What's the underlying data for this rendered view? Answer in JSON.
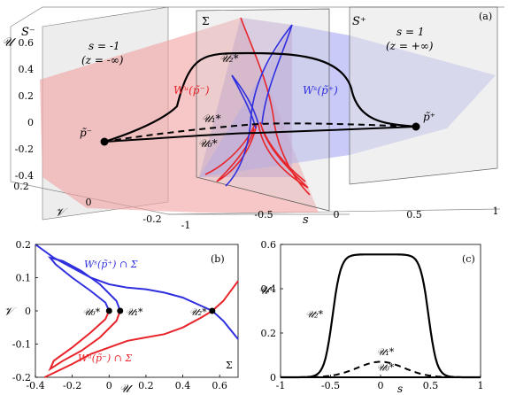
{
  "colors": {
    "red": "#e8242a",
    "blue": "#2f2fe0",
    "red_plane": "#f2a0a0",
    "blue_plane": "#a6a6f5",
    "grey_plane": "#d9d9d9",
    "black": "#000000"
  },
  "panel_a": {
    "label": "(a)",
    "ylabel": "𝒰",
    "vlabel": "𝒱",
    "slabel": "s",
    "u_ticks": [
      "0.6",
      "0.4",
      "0.2",
      "0",
      "-0.2",
      "-0.4"
    ],
    "v_ticks": [
      "0.2",
      "0",
      "-0.2"
    ],
    "s_ticks": [
      "-1",
      "-0.5",
      "0",
      "0.5",
      "1"
    ],
    "section_minus": "S⁻",
    "section_sigma": "Σ",
    "section_plus": "S⁺",
    "s_minus": "s = -1",
    "z_minus": "(z = -∞)",
    "s_plus": "s = 1",
    "z_plus": "(z = +∞)",
    "wu_label": "Wᵘ(p̃⁻)",
    "ws_label": "Wˢ(p̃⁺)",
    "p_minus": "p̃⁻",
    "p_plus": "p̃⁺",
    "u2": "𝒰₂*",
    "u1": "𝒰₁*",
    "u0": "𝒰₀*"
  },
  "chart_data": [
    {
      "type": "line",
      "panel": "(b)",
      "xlabel": "𝒰",
      "ylabel": "𝒱",
      "xlim": [
        -0.4,
        0.7
      ],
      "ylim": [
        -0.2,
        0.2
      ],
      "x_ticks": [
        "-0.4",
        "-0.2",
        "0",
        "0.2",
        "0.4",
        "0.6"
      ],
      "y_ticks": [
        "0.2",
        "0.1",
        "0",
        "-0.1",
        "-0.2"
      ],
      "corner_label": "Σ",
      "series_labels": {
        "blue": "Wˢ(p̃⁺) ∩ Σ",
        "red": "Wᵘ(p̃⁻) ∩ Σ"
      },
      "points": [
        {
          "label": "𝒰₀*",
          "x": 0.0,
          "y": 0.0
        },
        {
          "label": "𝒰₁*",
          "x": 0.06,
          "y": 0.0
        },
        {
          "label": "𝒰₂*",
          "x": 0.56,
          "y": 0.0
        }
      ],
      "blue_curve_1": [
        [
          -0.4,
          0.2
        ],
        [
          -0.3,
          0.16
        ],
        [
          -0.2,
          0.13
        ],
        [
          -0.1,
          0.1
        ],
        [
          0.0,
          0.08
        ],
        [
          0.1,
          0.07
        ],
        [
          0.2,
          0.065
        ],
        [
          0.3,
          0.055
        ],
        [
          0.4,
          0.04
        ],
        [
          0.5,
          0.015
        ],
        [
          0.56,
          0.0
        ],
        [
          0.62,
          -0.03
        ],
        [
          0.7,
          -0.085
        ]
      ],
      "blue_loop": [
        [
          0.06,
          0.0
        ],
        [
          0.04,
          0.03
        ],
        [
          -0.05,
          0.08
        ],
        [
          -0.15,
          0.12
        ],
        [
          -0.25,
          0.15
        ],
        [
          -0.32,
          0.16
        ],
        [
          -0.29,
          0.14
        ],
        [
          -0.2,
          0.1
        ],
        [
          -0.1,
          0.06
        ],
        [
          -0.02,
          0.025
        ],
        [
          0.0,
          0.0
        ]
      ],
      "red_curve_1": [
        [
          -0.35,
          -0.2
        ],
        [
          -0.2,
          -0.16
        ],
        [
          -0.1,
          -0.13
        ],
        [
          0.0,
          -0.11
        ],
        [
          0.1,
          -0.09
        ],
        [
          0.2,
          -0.08
        ],
        [
          0.3,
          -0.07
        ],
        [
          0.4,
          -0.05
        ],
        [
          0.5,
          -0.02
        ],
        [
          0.56,
          0.0
        ],
        [
          0.62,
          0.03
        ],
        [
          0.7,
          0.09
        ]
      ],
      "red_loop": [
        [
          0.06,
          0.0
        ],
        [
          0.04,
          -0.03
        ],
        [
          -0.05,
          -0.08
        ],
        [
          -0.15,
          -0.12
        ],
        [
          -0.25,
          -0.15
        ],
        [
          -0.32,
          -0.175
        ],
        [
          -0.3,
          -0.15
        ],
        [
          -0.2,
          -0.11
        ],
        [
          -0.1,
          -0.065
        ],
        [
          -0.02,
          -0.025
        ],
        [
          0.0,
          0.0
        ]
      ]
    },
    {
      "type": "line",
      "panel": "(c)",
      "xlabel": "s",
      "ylabel": "𝒰",
      "xlim": [
        -1,
        1
      ],
      "ylim": [
        0,
        0.6
      ],
      "x_ticks": [
        "-1",
        "-0.5",
        "0",
        "0.5",
        "1"
      ],
      "y_ticks": [
        "0.6",
        "0.4",
        "0.2",
        "0"
      ],
      "series": [
        {
          "name": "𝒰₂*",
          "style": "solid",
          "amplitude": 0.555
        },
        {
          "name": "𝒰₁*",
          "style": "dashed",
          "amplitude": 0.07
        },
        {
          "name": "𝒰₀*",
          "style": "solid",
          "amplitude": 0.0
        }
      ]
    }
  ]
}
